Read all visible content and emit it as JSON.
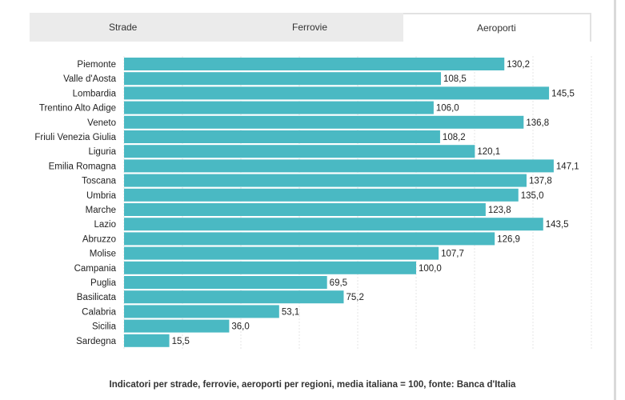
{
  "tabs": [
    {
      "label": "Strade",
      "active": false
    },
    {
      "label": "Ferrovie",
      "active": false
    },
    {
      "label": "Aeroporti",
      "active": true
    }
  ],
  "caption": "Indicatori per strade, ferrovie, aeroporti per regioni, media italiana = 100, fonte: Banca d'Italia",
  "chart_data": {
    "type": "bar",
    "orientation": "horizontal",
    "categories": [
      "Piemonte",
      "Valle d'Aosta",
      "Lombardia",
      "Trentino Alto Adige",
      "Veneto",
      "Friuli Venezia Giulia",
      "Liguria",
      "Emilia Romagna",
      "Toscana",
      "Umbria",
      "Marche",
      "Lazio",
      "Abruzzo",
      "Molise",
      "Campania",
      "Puglia",
      "Basilicata",
      "Calabria",
      "Sicilia",
      "Sardegna"
    ],
    "values": [
      130.2,
      108.5,
      145.5,
      106.0,
      136.8,
      108.2,
      120.1,
      147.1,
      137.8,
      135.0,
      123.8,
      143.5,
      126.9,
      107.7,
      100.0,
      69.5,
      75.2,
      53.1,
      36.0,
      15.5
    ],
    "value_labels": [
      "130,2",
      "108,5",
      "145,5",
      "106,0",
      "136,8",
      "108,2",
      "120,1",
      "147,1",
      "137,8",
      "135,0",
      "123,8",
      "143,5",
      "126,9",
      "107,7",
      "100,0",
      "69,5",
      "75,2",
      "53,1",
      "36,0",
      "15,5"
    ],
    "xlim": [
      0,
      160
    ],
    "grid": true,
    "bar_color": "#4ab9c3"
  }
}
